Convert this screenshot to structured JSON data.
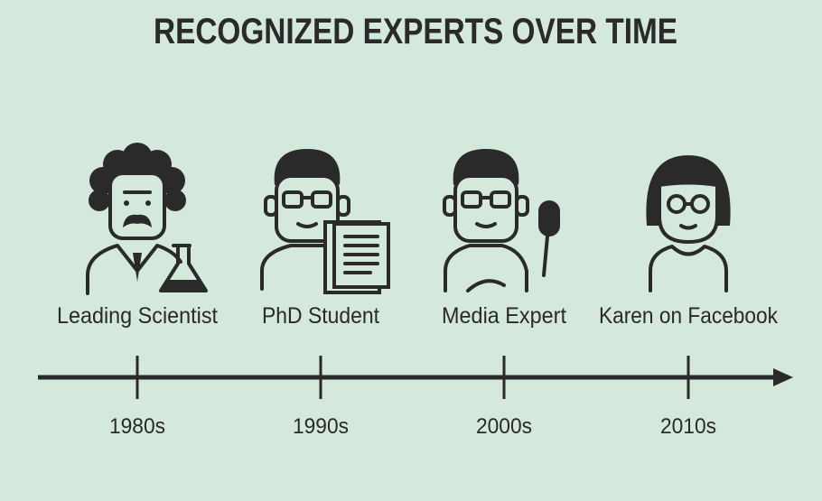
{
  "title": "RECOGNIZED EXPERTS OVER TIME",
  "items": [
    {
      "label": "Leading Scientist",
      "decade": "1980s"
    },
    {
      "label": "PhD Student",
      "decade": "1990s"
    },
    {
      "label": "Media Expert",
      "decade": "2000s"
    },
    {
      "label": "Karen on Facebook",
      "decade": "2010s"
    }
  ]
}
